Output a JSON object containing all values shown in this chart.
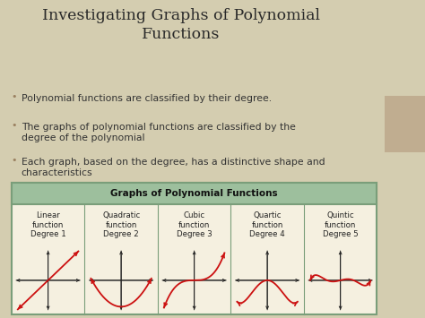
{
  "title": "Investigating Graphs of Polynomial\nFunctions",
  "bullets": [
    "Polynomial functions are classified by their degree.",
    "The graphs of polynomial functions are classified by the\ndegree of the polynomial",
    "Each graph, based on the degree, has a distinctive shape and\ncharacteristics"
  ],
  "table_title": "Graphs of Polynomial Functions",
  "columns": [
    {
      "label": "Linear\nfunction\nDegree 1"
    },
    {
      "label": "Quadratic\nfunction\nDegree 2"
    },
    {
      "label": "Cubic\nfunction\nDegree 3"
    },
    {
      "label": "Quartic\nfunction\nDegree 4"
    },
    {
      "label": "Quintic\nfunction\nDegree 5"
    }
  ],
  "slide_bg": "#d4cdb0",
  "main_bg": "#ffffff",
  "table_bg": "#f5f0e0",
  "header_color": "#9dbf9d",
  "table_border_color": "#7a9e7a",
  "curve_color": "#cc1111",
  "axis_color": "#222222",
  "title_color": "#2a2a2a",
  "bullet_color": "#333333",
  "sidebar_dark": "#8B7355",
  "sidebar_light": "#c0ad90"
}
